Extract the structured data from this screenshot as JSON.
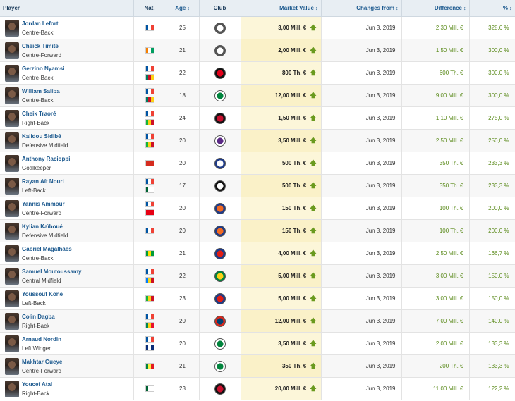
{
  "headers": {
    "player": "Player",
    "nat": "Nat.",
    "age": "Age",
    "club": "Club",
    "market_value": "Market Value",
    "changes_from": "Changes from",
    "difference": "Difference",
    "pct": "%"
  },
  "rows": [
    {
      "name": "Jordan Lefort",
      "position": "Centre-Back",
      "flags": [
        [
          "#0055a4",
          "#ffffff",
          "#ef4135"
        ]
      ],
      "age": "25",
      "club": "amiens-crest",
      "club_colors": [
        "#ffffff",
        "#555555"
      ],
      "mv": "3,00 Mill. €",
      "date": "Jun 3, 2019",
      "diff": "2,30 Mill. €",
      "pct": "328,6 %"
    },
    {
      "name": "Cheick Timite",
      "position": "Centre-Forward",
      "flags": [
        [
          "#f77f00",
          "#ffffff",
          "#009e60"
        ]
      ],
      "age": "21",
      "club": "amiens-crest",
      "club_colors": [
        "#ffffff",
        "#555555"
      ],
      "mv": "2,00 Mill. €",
      "date": "Jun 3, 2019",
      "diff": "1,50 Mill. €",
      "pct": "300,0 %"
    },
    {
      "name": "Gerzino Nyamsi",
      "position": "Centre-Back",
      "flags": [
        [
          "#0055a4",
          "#ffffff",
          "#ef4135"
        ],
        [
          "#007a5e",
          "#ce1126",
          "#fcd116"
        ]
      ],
      "age": "22",
      "club": "rennes-crest",
      "club_colors": [
        "#e2001a",
        "#111111"
      ],
      "mv": "800 Th. €",
      "date": "Jun 3, 2019",
      "diff": "600 Th. €",
      "pct": "300,0 %"
    },
    {
      "name": "William Saliba",
      "position": "Centre-Back",
      "flags": [
        [
          "#0055a4",
          "#ffffff",
          "#ef4135"
        ],
        [
          "#007a5e",
          "#ce1126",
          "#fcd116"
        ]
      ],
      "age": "18",
      "club": "saint-etienne-crest",
      "club_colors": [
        "#00843d",
        "#ffffff"
      ],
      "mv": "12,00 Mill. €",
      "date": "Jun 3, 2019",
      "diff": "9,00 Mill. €",
      "pct": "300,0 %"
    },
    {
      "name": "Cheik Traoré",
      "position": "Right-Back",
      "flags": [
        [
          "#0055a4",
          "#ffffff",
          "#ef4135"
        ],
        [
          "#14b53a",
          "#fcd116",
          "#ce1126"
        ]
      ],
      "age": "24",
      "club": "guingamp-crest",
      "club_colors": [
        "#c8102e",
        "#111111"
      ],
      "mv": "1,50 Mill. €",
      "date": "Jun 3, 2019",
      "diff": "1,10 Mill. €",
      "pct": "275,0 %"
    },
    {
      "name": "Kalidou Sidibé",
      "position": "Defensive Midfield",
      "flags": [
        [
          "#0055a4",
          "#ffffff",
          "#ef4135"
        ],
        [
          "#14b53a",
          "#fcd116",
          "#ce1126"
        ]
      ],
      "age": "20",
      "club": "toulouse-crest",
      "club_colors": [
        "#5b2a86",
        "#ffffff"
      ],
      "mv": "3,50 Mill. €",
      "date": "Jun 3, 2019",
      "diff": "2,50 Mill. €",
      "pct": "250,0 %"
    },
    {
      "name": "Anthony Racioppi",
      "position": "Goalkeeper",
      "flags": [
        [
          "#d52b1e",
          "#d52b1e",
          "#d52b1e"
        ]
      ],
      "age": "20",
      "club": "lyon-crest",
      "club_colors": [
        "#ffffff",
        "#1d3a8a"
      ],
      "mv": "500 Th. €",
      "date": "Jun 3, 2019",
      "diff": "350 Th. €",
      "pct": "233,3 %"
    },
    {
      "name": "Rayan Aït Nouri",
      "position": "Left-Back",
      "flags": [
        [
          "#0055a4",
          "#ffffff",
          "#ef4135"
        ],
        [
          "#006233",
          "#ffffff",
          "#ffffff"
        ]
      ],
      "age": "17",
      "club": "angers-crest",
      "club_colors": [
        "#ffffff",
        "#111111"
      ],
      "mv": "500 Th. €",
      "date": "Jun 3, 2019",
      "diff": "350 Th. €",
      "pct": "233,3 %"
    },
    {
      "name": "Yannis Ammour",
      "position": "Centre-Forward",
      "flags": [
        [
          "#0055a4",
          "#ffffff",
          "#ef4135"
        ],
        [
          "#e70013",
          "#e70013",
          "#e70013"
        ]
      ],
      "age": "20",
      "club": "montpellier-crest",
      "club_colors": [
        "#f26a21",
        "#1d3a8a"
      ],
      "mv": "150 Th. €",
      "date": "Jun 3, 2019",
      "diff": "100 Th. €",
      "pct": "200,0 %"
    },
    {
      "name": "Kylian Kaïboué",
      "position": "Defensive Midfield",
      "flags": [
        [
          "#0055a4",
          "#ffffff",
          "#ef4135"
        ]
      ],
      "age": "20",
      "club": "montpellier-crest",
      "club_colors": [
        "#f26a21",
        "#1d3a8a"
      ],
      "mv": "150 Th. €",
      "date": "Jun 3, 2019",
      "diff": "100 Th. €",
      "pct": "200,0 %"
    },
    {
      "name": "Gabriel Magalhães",
      "position": "Centre-Back",
      "flags": [
        [
          "#009c3b",
          "#ffdf00",
          "#009c3b"
        ]
      ],
      "age": "21",
      "club": "lille-crest",
      "club_colors": [
        "#e01e13",
        "#1d3a8a"
      ],
      "mv": "4,00 Mill. €",
      "date": "Jun 3, 2019",
      "diff": "2,50 Mill. €",
      "pct": "166,7 %"
    },
    {
      "name": "Samuel Moutoussamy",
      "position": "Central Midfield",
      "flags": [
        [
          "#0055a4",
          "#ffffff",
          "#ef4135"
        ],
        [
          "#007fff",
          "#f7d618",
          "#ce1021"
        ]
      ],
      "age": "22",
      "club": "nantes-crest",
      "club_colors": [
        "#fcd116",
        "#00843d"
      ],
      "mv": "5,00 Mill. €",
      "date": "Jun 3, 2019",
      "diff": "3,00 Mill. €",
      "pct": "150,0 %"
    },
    {
      "name": "Youssouf Koné",
      "position": "Left-Back",
      "flags": [
        [
          "#14b53a",
          "#fcd116",
          "#ce1126"
        ]
      ],
      "age": "23",
      "club": "lille-crest",
      "club_colors": [
        "#e01e13",
        "#1d3a8a"
      ],
      "mv": "5,00 Mill. €",
      "date": "Jun 3, 2019",
      "diff": "3,00 Mill. €",
      "pct": "150,0 %"
    },
    {
      "name": "Colin Dagba",
      "position": "Right-Back",
      "flags": [
        [
          "#0055a4",
          "#ffffff",
          "#ef4135"
        ],
        [
          "#008751",
          "#fcd116",
          "#e8112d"
        ]
      ],
      "age": "20",
      "club": "psg-crest",
      "club_colors": [
        "#004170",
        "#da291c"
      ],
      "mv": "12,00 Mill. €",
      "date": "Jun 3, 2019",
      "diff": "7,00 Mill. €",
      "pct": "140,0 %"
    },
    {
      "name": "Arnaud Nordin",
      "position": "Left Winger",
      "flags": [
        [
          "#0055a4",
          "#ffffff",
          "#ef4135"
        ],
        [
          "#0a2d78",
          "#ffffff",
          "#0a2d78"
        ]
      ],
      "age": "20",
      "club": "saint-etienne-crest",
      "club_colors": [
        "#00843d",
        "#ffffff"
      ],
      "mv": "3,50 Mill. €",
      "date": "Jun 3, 2019",
      "diff": "2,00 Mill. €",
      "pct": "133,3 %"
    },
    {
      "name": "Makhtar Gueye",
      "position": "Centre-Forward",
      "flags": [
        [
          "#00853f",
          "#fdef42",
          "#e31b23"
        ]
      ],
      "age": "21",
      "club": "saint-etienne-crest",
      "club_colors": [
        "#00843d",
        "#ffffff"
      ],
      "mv": "350 Th. €",
      "date": "Jun 3, 2019",
      "diff": "200 Th. €",
      "pct": "133,3 %"
    },
    {
      "name": "Youcef Atal",
      "position": "Right-Back",
      "flags": [
        [
          "#006233",
          "#ffffff",
          "#ffffff"
        ]
      ],
      "age": "23",
      "club": "nice-crest",
      "club_colors": [
        "#c8102e",
        "#111111"
      ],
      "mv": "20,00 Mill. €",
      "date": "Jun 3, 2019",
      "diff": "11,00 Mill. €",
      "pct": "122,2 %"
    }
  ],
  "icons": {
    "sort": "sort-arrows-icon",
    "up": "arrow-up-icon"
  },
  "colors": {
    "link": "#1d5a8f",
    "positive": "#5a8a1a",
    "mv_bg": "#fcf6d9",
    "header_bg": "#e8eef3"
  }
}
